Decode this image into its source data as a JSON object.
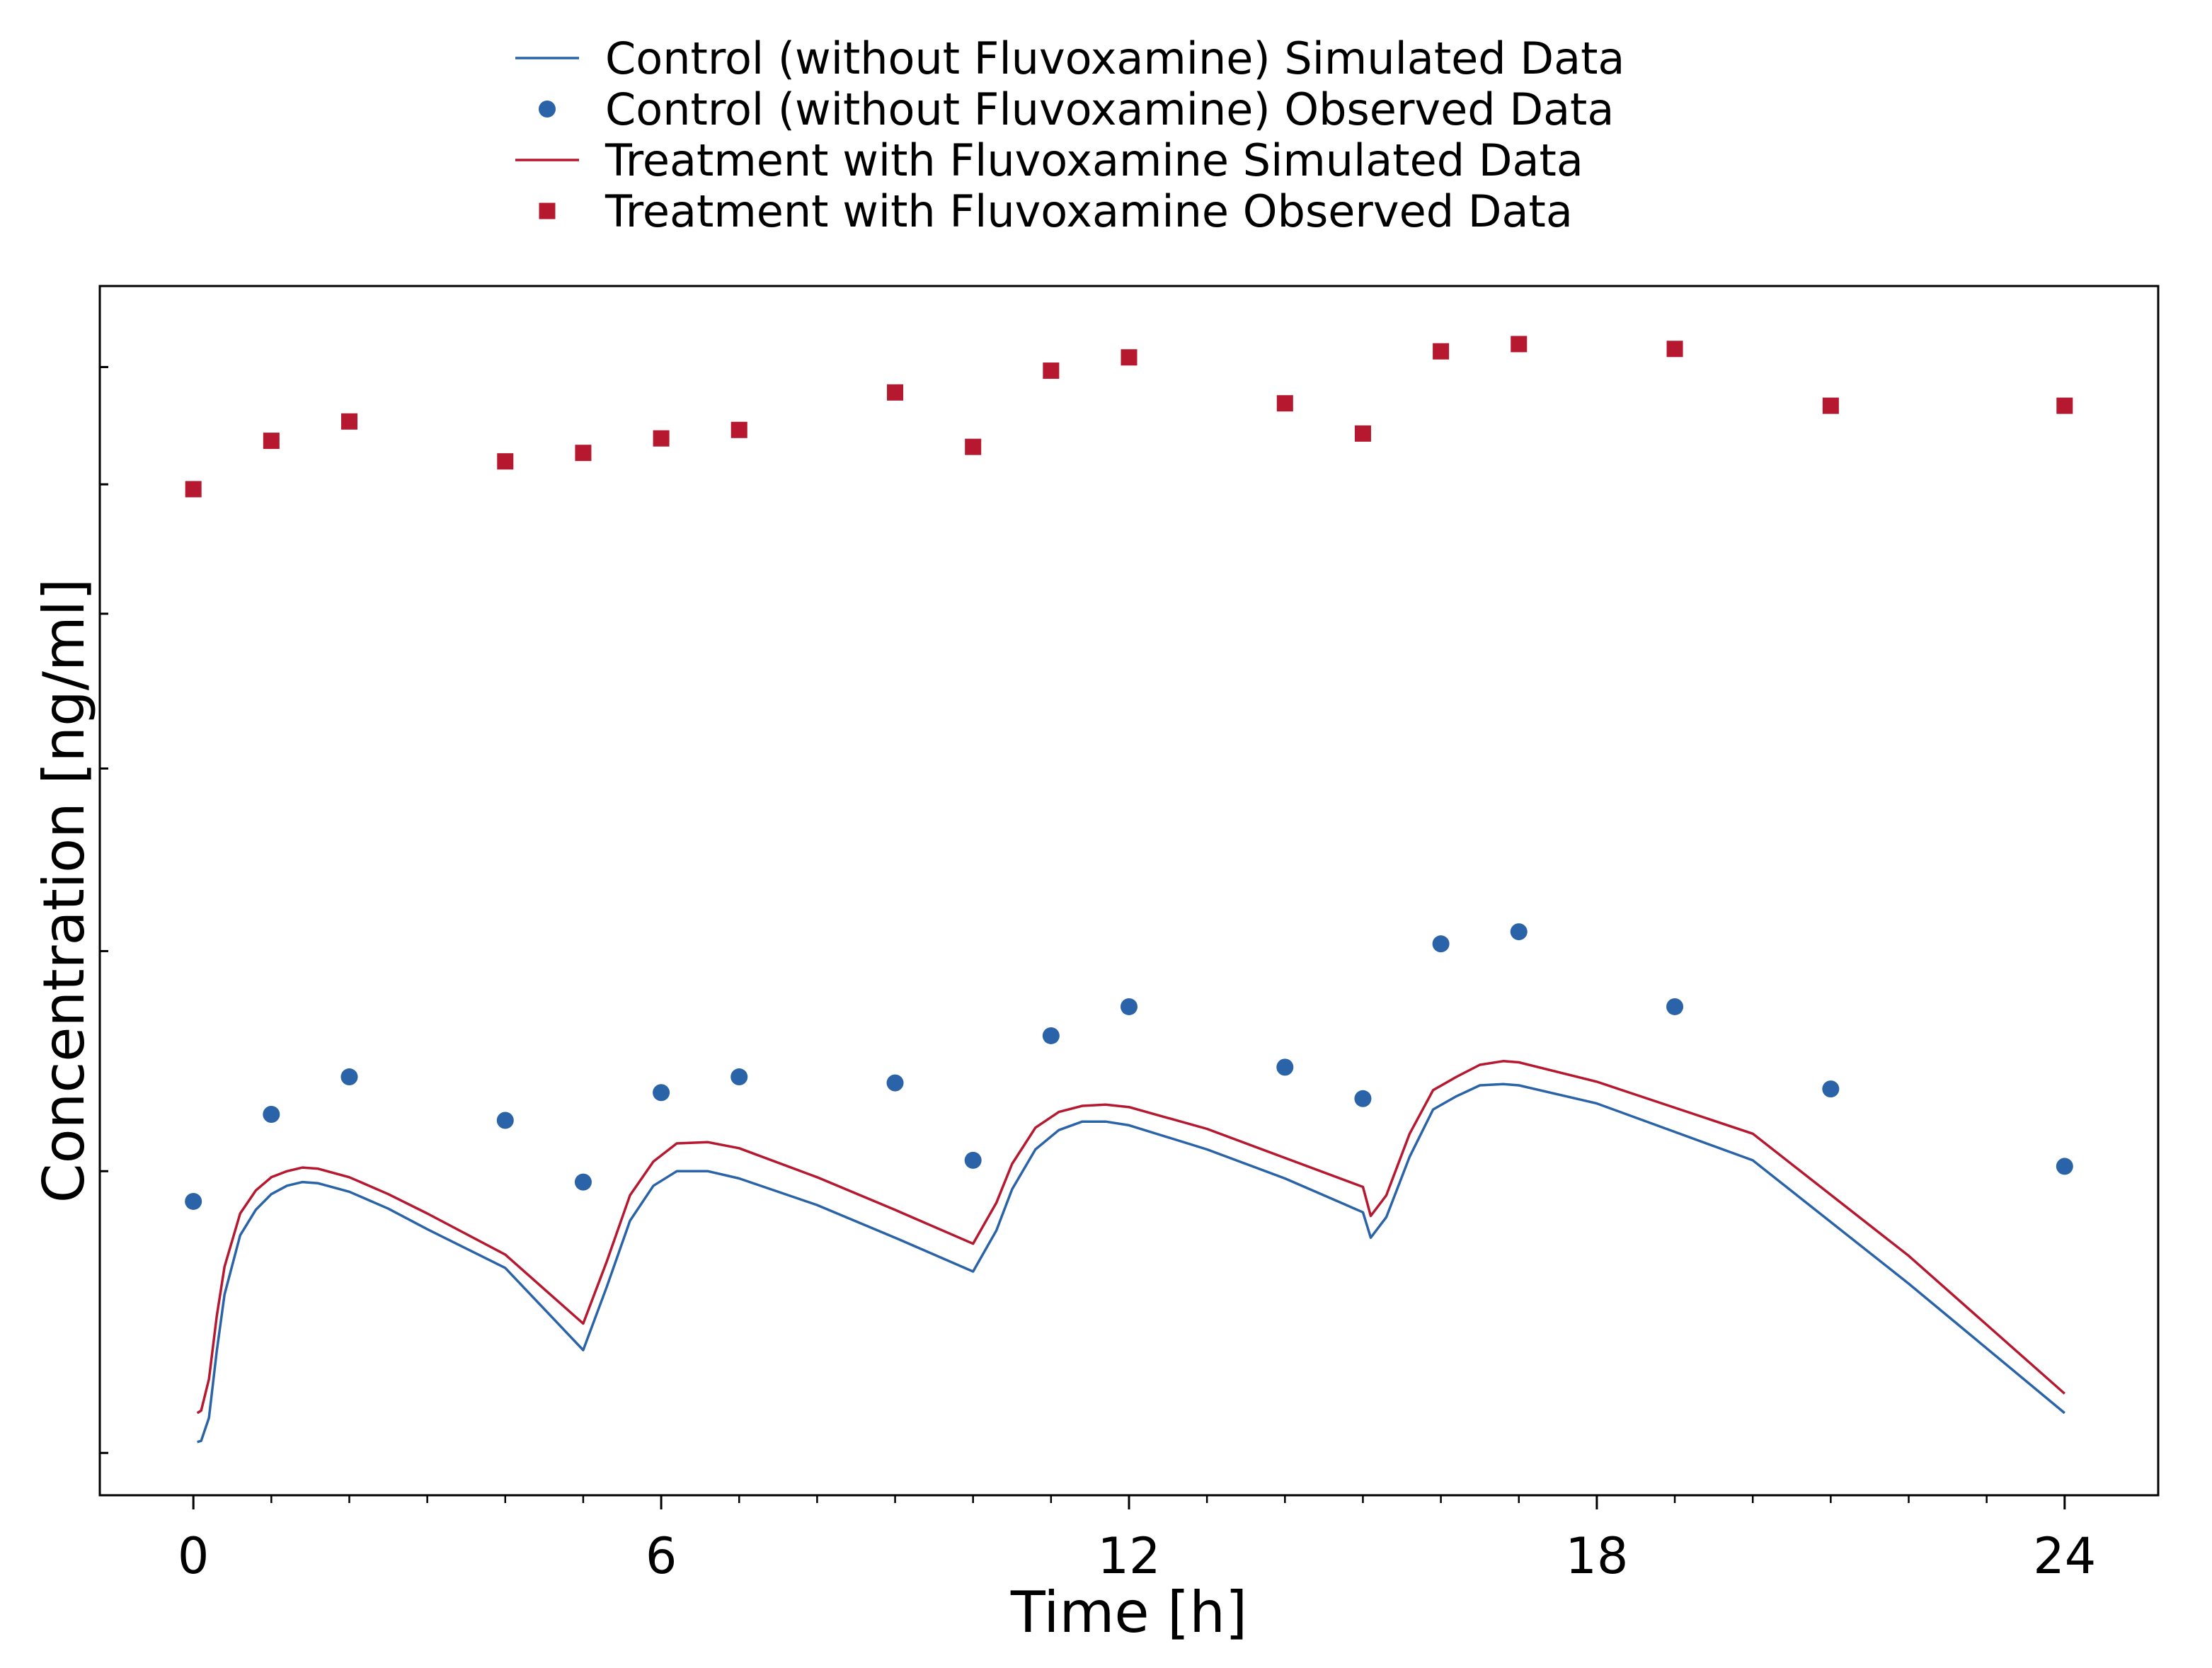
{
  "chart_data": {
    "type": "line",
    "title": "",
    "xlabel": "Time [h]",
    "ylabel": "Concentration [ng/ml]",
    "xlim": [
      -1.2,
      25.2
    ],
    "ylim": [
      0,
      1
    ],
    "x_ticks_major": [
      0,
      6,
      12,
      18,
      24
    ],
    "x_tick_labels": [
      "0",
      "6",
      "12",
      "18",
      "24"
    ],
    "x_ticks_minor": [
      1,
      2,
      3,
      4,
      5,
      7,
      8,
      9,
      10,
      11,
      13,
      14,
      15,
      16,
      17,
      19,
      20,
      21,
      22,
      23
    ],
    "y_ticks": [
      0.035,
      0.268,
      0.45,
      0.601,
      0.729,
      0.836,
      0.933
    ],
    "y_tick_labels": [],
    "grid": false,
    "legend_position": "top-center",
    "series": [
      {
        "name": "Control (without Fluvoxamine) Simulated Data",
        "kind": "line",
        "color": "#2a63a8",
        "x": [
          0.05,
          0.1,
          0.2,
          0.3,
          0.4,
          0.6,
          0.8,
          1.0,
          1.2,
          1.4,
          1.6,
          2.0,
          2.5,
          3.0,
          4.0,
          5.0,
          5.3,
          5.6,
          5.9,
          6.2,
          6.6,
          7.0,
          8.0,
          9.0,
          10.0,
          10.3,
          10.5,
          10.8,
          11.1,
          11.4,
          11.7,
          12.0,
          13.0,
          14.0,
          15.0,
          15.1,
          15.3,
          15.6,
          15.9,
          16.2,
          16.5,
          16.8,
          17.0,
          18.0,
          20.0,
          22.0,
          24.0
        ],
        "y": [
          0.044,
          0.045,
          0.064,
          0.119,
          0.166,
          0.215,
          0.236,
          0.249,
          0.256,
          0.259,
          0.258,
          0.251,
          0.237,
          0.22,
          0.188,
          0.12,
          0.172,
          0.227,
          0.256,
          0.268,
          0.268,
          0.262,
          0.24,
          0.213,
          0.185,
          0.219,
          0.253,
          0.286,
          0.302,
          0.309,
          0.309,
          0.306,
          0.286,
          0.262,
          0.234,
          0.213,
          0.23,
          0.28,
          0.319,
          0.33,
          0.339,
          0.34,
          0.339,
          0.324,
          0.277,
          0.175,
          0.068
        ]
      },
      {
        "name": "Control (without Fluvoxamine) Observed Data",
        "kind": "scatter",
        "marker": "circle",
        "color": "#2a63a8",
        "x": [
          0,
          1,
          2,
          4,
          5,
          6,
          7,
          9,
          10,
          11,
          12,
          14,
          15,
          16,
          17,
          19,
          21,
          24
        ],
        "y": [
          0.243,
          0.315,
          0.346,
          0.31,
          0.259,
          0.333,
          0.346,
          0.341,
          0.277,
          0.38,
          0.404,
          0.354,
          0.328,
          0.456,
          0.466,
          0.404,
          0.336,
          0.272
        ]
      },
      {
        "name": "Treatment with Fluvoxamine Simulated Data",
        "kind": "line",
        "color": "#b5182f",
        "x": [
          0.05,
          0.1,
          0.2,
          0.3,
          0.4,
          0.6,
          0.8,
          1.0,
          1.2,
          1.4,
          1.6,
          2.0,
          2.5,
          3.0,
          4.0,
          5.0,
          5.3,
          5.6,
          5.9,
          6.2,
          6.6,
          7.0,
          8.0,
          9.0,
          10.0,
          10.3,
          10.5,
          10.8,
          11.1,
          11.4,
          11.7,
          12.0,
          13.0,
          14.0,
          15.0,
          15.1,
          15.3,
          15.6,
          15.9,
          16.2,
          16.5,
          16.8,
          17.0,
          18.0,
          20.0,
          22.0,
          24.0
        ],
        "y": [
          0.068,
          0.07,
          0.096,
          0.148,
          0.189,
          0.233,
          0.252,
          0.263,
          0.268,
          0.271,
          0.27,
          0.263,
          0.249,
          0.233,
          0.199,
          0.142,
          0.193,
          0.248,
          0.276,
          0.291,
          0.292,
          0.287,
          0.263,
          0.236,
          0.208,
          0.242,
          0.274,
          0.304,
          0.317,
          0.322,
          0.323,
          0.321,
          0.303,
          0.279,
          0.255,
          0.231,
          0.248,
          0.299,
          0.335,
          0.346,
          0.356,
          0.359,
          0.358,
          0.342,
          0.299,
          0.198,
          0.084
        ]
      },
      {
        "name": "Treatment with Fluvoxamine Observed Data",
        "kind": "scatter",
        "marker": "square",
        "color": "#b5182f",
        "x": [
          0,
          1,
          2,
          4,
          5,
          6,
          7,
          9,
          10,
          11,
          12,
          14,
          15,
          16,
          17,
          19,
          21,
          24
        ],
        "y": [
          0.832,
          0.872,
          0.888,
          0.855,
          0.862,
          0.874,
          0.881,
          0.912,
          0.867,
          0.93,
          0.941,
          0.903,
          0.878,
          0.946,
          0.952,
          0.948,
          0.901,
          0.901
        ]
      }
    ]
  }
}
